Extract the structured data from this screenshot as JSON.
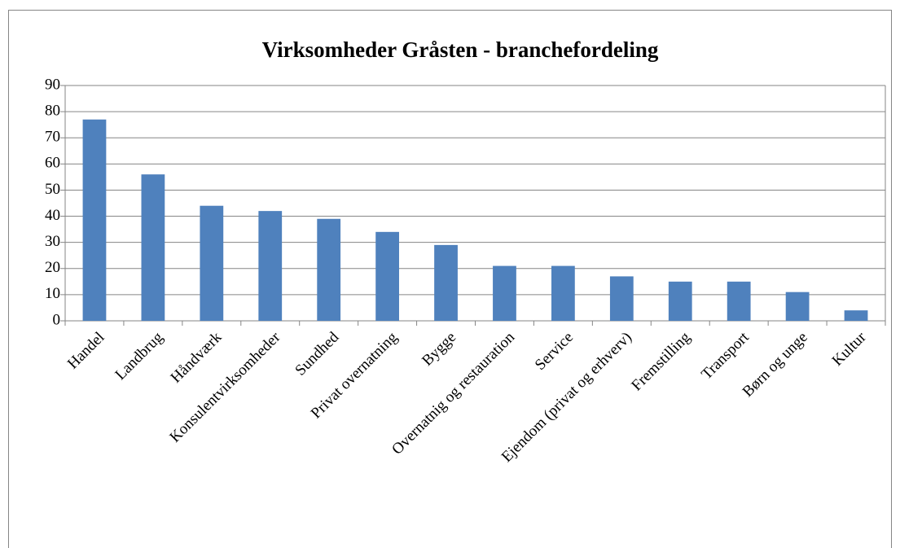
{
  "chart_data": {
    "type": "bar",
    "title": "Virksomheder Gråsten - branchefordeling",
    "categories": [
      "Handel",
      "Landbrug",
      "Håndværk",
      "Konsulentvirksomheder",
      "Sundhed",
      "Privat overnatning",
      "Bygge",
      "Overnatnig og restauration",
      "Service",
      "Ejendom (privat og erhverv)",
      "Fremstilling",
      "Transport",
      "Børn og unge",
      "Kultur"
    ],
    "values": [
      77,
      56,
      44,
      42,
      39,
      34,
      29,
      21,
      21,
      17,
      15,
      15,
      11,
      4
    ],
    "color": "#4f81bd",
    "ylim": [
      0,
      90
    ],
    "yticks": [
      0,
      10,
      20,
      30,
      40,
      50,
      60,
      70,
      80,
      90
    ],
    "grid": true
  }
}
